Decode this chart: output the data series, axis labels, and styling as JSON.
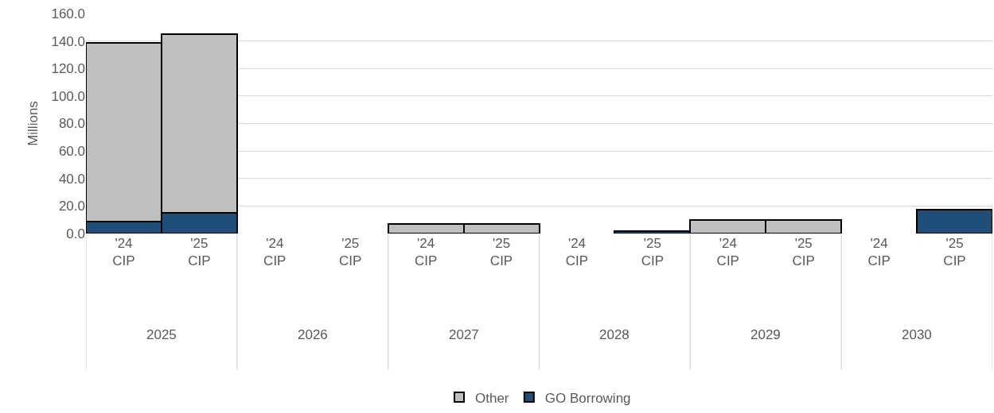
{
  "chart_data": {
    "type": "bar",
    "stacked": true,
    "ylabel": "Millions",
    "categories": [
      "'24 CIP",
      "'25 CIP",
      "'24 CIP",
      "'25 CIP",
      "'24 CIP",
      "'25 CIP",
      "'24 CIP",
      "'25 CIP",
      "'24 CIP",
      "'25 CIP",
      "'24 CIP",
      "'25 CIP"
    ],
    "annotations": [
      "2025",
      "2026",
      "2027",
      "2028",
      "2029",
      "2030"
    ],
    "series": [
      {
        "name": "GO Borrowing",
        "color": "#1f4e79",
        "values": [
          8.5,
          15,
          null,
          null,
          null,
          null,
          null,
          2,
          null,
          null,
          null,
          17.5
        ]
      },
      {
        "name": "Other",
        "color": "#bfbfbf",
        "values": [
          130,
          130,
          null,
          null,
          7,
          7,
          null,
          null,
          10,
          10,
          null,
          null
        ]
      }
    ],
    "ylim": [
      0,
      160
    ],
    "yticks": [
      {
        "value": 0,
        "label": "0.0"
      },
      {
        "value": 20,
        "label": "20.0"
      },
      {
        "value": 40,
        "label": "40.0"
      },
      {
        "value": 60,
        "label": "60.0"
      },
      {
        "value": 80,
        "label": "80.0"
      },
      {
        "value": 100,
        "label": "100.0"
      },
      {
        "value": 120,
        "label": "120.0"
      },
      {
        "value": 140,
        "label": "140.0"
      },
      {
        "value": 160,
        "label": "160.0"
      }
    ],
    "grid": "y",
    "legend": "bottom"
  }
}
